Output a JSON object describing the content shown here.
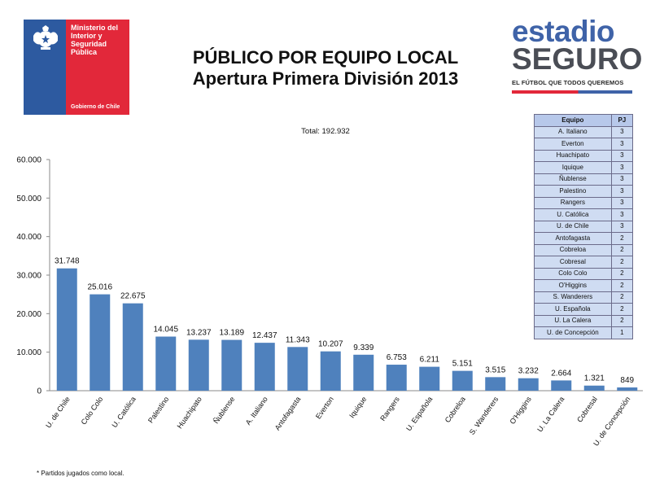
{
  "header": {
    "title_line1": "PÚBLICO POR EQUIPO LOCAL",
    "title_line2": "Apertura Primera División 2013",
    "total": "Total: 192.932"
  },
  "gob_logo": {
    "name_lines": [
      "Ministerio del",
      "Interior y",
      "Seguridad",
      "Pública"
    ],
    "sub": "Gobierno de Chile",
    "colors": {
      "blue": "#2d5aa0",
      "red": "#e2283a"
    }
  },
  "brand": {
    "line1": "estadio",
    "line2": "SEGURO",
    "tagline": "EL FÚTBOL QUE TODOS QUEREMOS"
  },
  "chart_data": {
    "type": "bar",
    "categories": [
      "U. de Chile",
      "Colo Colo",
      "U. Católica",
      "Palestino",
      "Huachipato",
      "Ñublense",
      "A. Italiano",
      "Antofagasta",
      "Everton",
      "Iquique",
      "Rangers",
      "U. Española",
      "Cobreloa",
      "S. Wanderers",
      "O'Higgins",
      "U. La Calera",
      "Cobresal",
      "U. de Concepción"
    ],
    "values": [
      31748,
      25016,
      22675,
      14045,
      13237,
      13189,
      12437,
      11343,
      10207,
      9339,
      6753,
      6211,
      5151,
      3515,
      3232,
      2664,
      1321,
      849
    ],
    "value_labels": [
      "31.748",
      "25.016",
      "22.675",
      "14.045",
      "13.237",
      "13.189",
      "12.437",
      "11.343",
      "10.207",
      "9.339",
      "6.753",
      "6.211",
      "5.151",
      "3.515",
      "3.232",
      "2.664",
      "1.321",
      "849"
    ],
    "y_ticks": [
      0,
      10000,
      20000,
      30000,
      40000,
      50000,
      60000
    ],
    "y_tick_labels": [
      "0",
      "10.000",
      "20.000",
      "30.000",
      "40.000",
      "50.000",
      "60.000"
    ],
    "ylim": [
      0,
      60000
    ],
    "bar_color": "#4f81bd",
    "grid": false
  },
  "pj_table": {
    "headers": [
      "Equipo",
      "PJ"
    ],
    "rows": [
      [
        "A. Italiano",
        "3"
      ],
      [
        "Everton",
        "3"
      ],
      [
        "Huachipato",
        "3"
      ],
      [
        "Iquique",
        "3"
      ],
      [
        "Ñublense",
        "3"
      ],
      [
        "Palestino",
        "3"
      ],
      [
        "Rangers",
        "3"
      ],
      [
        "U. Católica",
        "3"
      ],
      [
        "U. de Chile",
        "3"
      ],
      [
        "Antofagasta",
        "2"
      ],
      [
        "Cobreloa",
        "2"
      ],
      [
        "Cobresal",
        "2"
      ],
      [
        "Colo Colo",
        "2"
      ],
      [
        "O'Higgins",
        "2"
      ],
      [
        "S. Wanderers",
        "2"
      ],
      [
        "U. Española",
        "2"
      ],
      [
        "U. La Calera",
        "2"
      ],
      [
        "U. de Concepción",
        "1"
      ]
    ]
  },
  "footnote": "* Partidos jugados como local."
}
